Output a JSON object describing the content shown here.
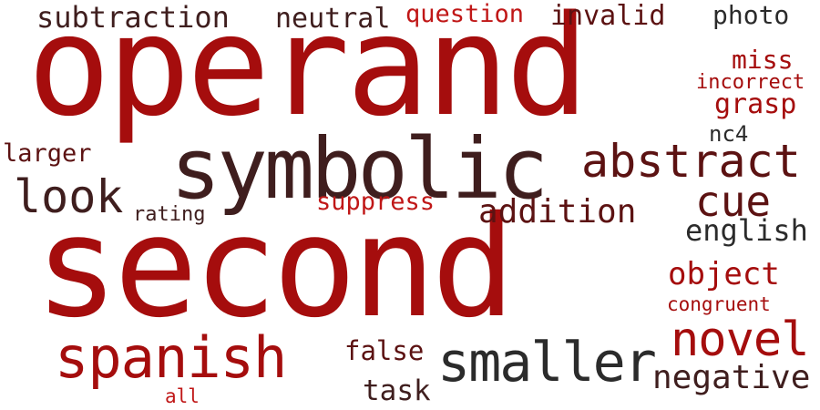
{
  "palette": {
    "background": "#ffffff",
    "red": "#a50d0d",
    "dark_red": "#5c1212",
    "maroon": "#3f1e1e",
    "near_black": "#2b2b2b",
    "brick": "#c01717"
  },
  "words": [
    {
      "text": "operand",
      "weight": 1.0,
      "color": "red"
    },
    {
      "text": "second",
      "weight": 0.98,
      "color": "red"
    },
    {
      "text": "symbolic",
      "weight": 0.62,
      "color": "maroon"
    },
    {
      "text": "spanish",
      "weight": 0.42,
      "color": "red"
    },
    {
      "text": "smaller",
      "weight": 0.42,
      "color": "near_black"
    },
    {
      "text": "abstract",
      "weight": 0.4,
      "color": "dark_red"
    },
    {
      "text": "novel",
      "weight": 0.36,
      "color": "red"
    },
    {
      "text": "look",
      "weight": 0.35,
      "color": "maroon"
    },
    {
      "text": "cue",
      "weight": 0.34,
      "color": "dark_red"
    },
    {
      "text": "addition",
      "weight": 0.26,
      "color": "dark_red"
    },
    {
      "text": "negative",
      "weight": 0.26,
      "color": "maroon"
    },
    {
      "text": "object",
      "weight": 0.25,
      "color": "red"
    },
    {
      "text": "subtraction",
      "weight": 0.24,
      "color": "maroon"
    },
    {
      "text": "english",
      "weight": 0.23,
      "color": "near_black"
    },
    {
      "text": "grasp",
      "weight": 0.22,
      "color": "red"
    },
    {
      "text": "neutral",
      "weight": 0.22,
      "color": "maroon"
    },
    {
      "text": "invalid",
      "weight": 0.22,
      "color": "dark_red"
    },
    {
      "text": "question",
      "weight": 0.21,
      "color": "brick"
    },
    {
      "text": "suppress",
      "weight": 0.21,
      "color": "brick"
    },
    {
      "text": "false",
      "weight": 0.21,
      "color": "dark_red"
    },
    {
      "text": "task",
      "weight": 0.21,
      "color": "maroon"
    },
    {
      "text": "miss",
      "weight": 0.2,
      "color": "red"
    },
    {
      "text": "photo",
      "weight": 0.2,
      "color": "near_black"
    },
    {
      "text": "larger",
      "weight": 0.2,
      "color": "dark_red"
    },
    {
      "text": "nc4",
      "weight": 0.18,
      "color": "near_black"
    },
    {
      "text": "incorrect",
      "weight": 0.17,
      "color": "red"
    },
    {
      "text": "rating",
      "weight": 0.17,
      "color": "maroon"
    },
    {
      "text": "congruent",
      "weight": 0.16,
      "color": "red"
    },
    {
      "text": "all",
      "weight": 0.16,
      "color": "brick"
    }
  ]
}
